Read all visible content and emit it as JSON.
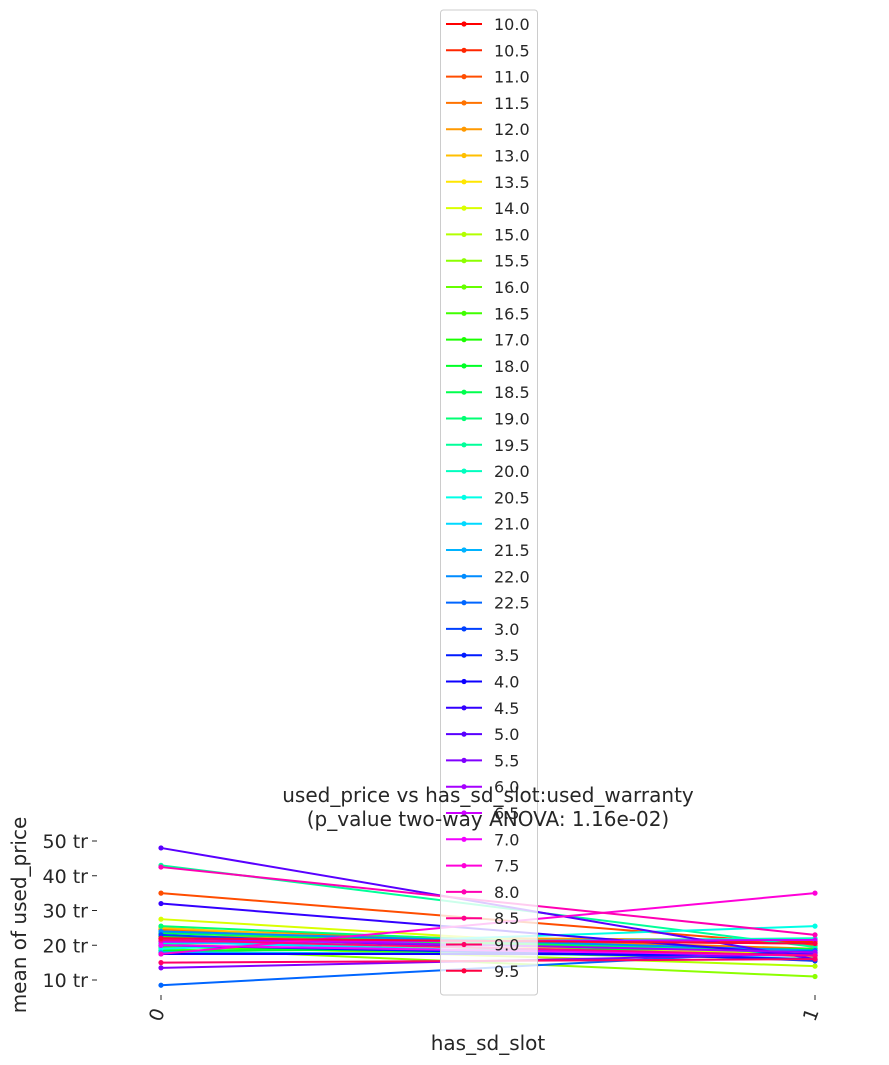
{
  "chart_data": {
    "type": "line",
    "title": "used_price vs has_sd_slot:used_warranty",
    "subtitle": "(p_value two-way ANOVA: 1.16e-02)",
    "xlabel": "has_sd_slot",
    "ylabel": "mean of used_price",
    "categories": [
      "0",
      "1"
    ],
    "x_tick_labels": [
      "0",
      "1"
    ],
    "y_ticks": [
      10,
      20,
      30,
      40,
      50
    ],
    "y_tick_labels": [
      "10 tr",
      "20 tr",
      "30 tr",
      "40 tr",
      "50 tr"
    ],
    "ylim": [
      6,
      53
    ],
    "grid": false,
    "legend_position": "top-center",
    "series": [
      {
        "name": "10.0",
        "color": "#ff0000",
        "values": [
          22.0,
          20.5
        ]
      },
      {
        "name": "10.5",
        "color": "#ff2600",
        "values": [
          20.5,
          21.0
        ]
      },
      {
        "name": "11.0",
        "color": "#ff4d00",
        "values": [
          35.0,
          20.0
        ]
      },
      {
        "name": "11.5",
        "color": "#ff7300",
        "values": [
          24.5,
          19.0
        ]
      },
      {
        "name": "12.0",
        "color": "#ff9900",
        "values": [
          22.5,
          21.5
        ]
      },
      {
        "name": "13.0",
        "color": "#ffbf00",
        "values": [
          25.0,
          15.5
        ]
      },
      {
        "name": "13.5",
        "color": "#ffe600",
        "values": [
          21.0,
          17.5
        ]
      },
      {
        "name": "14.0",
        "color": "#d9ff00",
        "values": [
          27.5,
          16.5
        ]
      },
      {
        "name": "15.0",
        "color": "#b3ff00",
        "values": [
          20.0,
          14.0
        ]
      },
      {
        "name": "15.5",
        "color": "#8cff00",
        "values": [
          19.0,
          11.0
        ]
      },
      {
        "name": "16.0",
        "color": "#66ff00",
        "values": [
          21.5,
          17.0
        ]
      },
      {
        "name": "16.5",
        "color": "#40ff00",
        "values": [
          19.5,
          16.0
        ]
      },
      {
        "name": "17.0",
        "color": "#1aff00",
        "values": [
          22.5,
          18.0
        ]
      },
      {
        "name": "18.0",
        "color": "#00ff26",
        "values": [
          18.5,
          19.0
        ]
      },
      {
        "name": "18.5",
        "color": "#00ff4d",
        "values": [
          23.5,
          18.0
        ]
      },
      {
        "name": "19.0",
        "color": "#00ff73",
        "values": [
          25.5,
          17.5
        ]
      },
      {
        "name": "19.5",
        "color": "#00ff99",
        "values": [
          43.0,
          19.5
        ]
      },
      {
        "name": "20.0",
        "color": "#00ffbf",
        "values": [
          20.5,
          22.0
        ]
      },
      {
        "name": "20.5",
        "color": "#00ffe6",
        "values": [
          19.0,
          25.5
        ]
      },
      {
        "name": "21.0",
        "color": "#00d9ff",
        "values": [
          21.0,
          16.0
        ]
      },
      {
        "name": "21.5",
        "color": "#00b3ff",
        "values": [
          18.0,
          17.0
        ]
      },
      {
        "name": "22.0",
        "color": "#008cff",
        "values": [
          24.0,
          18.5
        ]
      },
      {
        "name": "22.5",
        "color": "#0066ff",
        "values": [
          8.5,
          18.5
        ]
      },
      {
        "name": "3.0",
        "color": "#0040ff",
        "values": [
          23.0,
          15.5
        ]
      },
      {
        "name": "3.5",
        "color": "#001aff",
        "values": [
          20.0,
          16.0
        ]
      },
      {
        "name": "4.0",
        "color": "#0d00ff",
        "values": [
          17.5,
          17.5
        ]
      },
      {
        "name": "4.5",
        "color": "#3300ff",
        "values": [
          32.0,
          17.0
        ]
      },
      {
        "name": "5.0",
        "color": "#5900ff",
        "values": [
          48.0,
          16.0
        ]
      },
      {
        "name": "5.5",
        "color": "#8000ff",
        "values": [
          13.5,
          17.5
        ]
      },
      {
        "name": "6.0",
        "color": "#a600ff",
        "values": [
          22.0,
          18.0
        ]
      },
      {
        "name": "6.5",
        "color": "#cc00ff",
        "values": [
          21.0,
          21.5
        ]
      },
      {
        "name": "7.0",
        "color": "#f200ff",
        "values": [
          20.0,
          17.0
        ]
      },
      {
        "name": "7.5",
        "color": "#ff00d9",
        "values": [
          17.5,
          35.0
        ]
      },
      {
        "name": "8.0",
        "color": "#ff00b3",
        "values": [
          42.5,
          23.0
        ]
      },
      {
        "name": "8.5",
        "color": "#ff008c",
        "values": [
          21.5,
          17.0
        ]
      },
      {
        "name": "9.0",
        "color": "#ff0066",
        "values": [
          15.0,
          16.0
        ]
      },
      {
        "name": "9.5",
        "color": "#ff0040",
        "values": [
          22.0,
          20.5
        ]
      }
    ]
  }
}
